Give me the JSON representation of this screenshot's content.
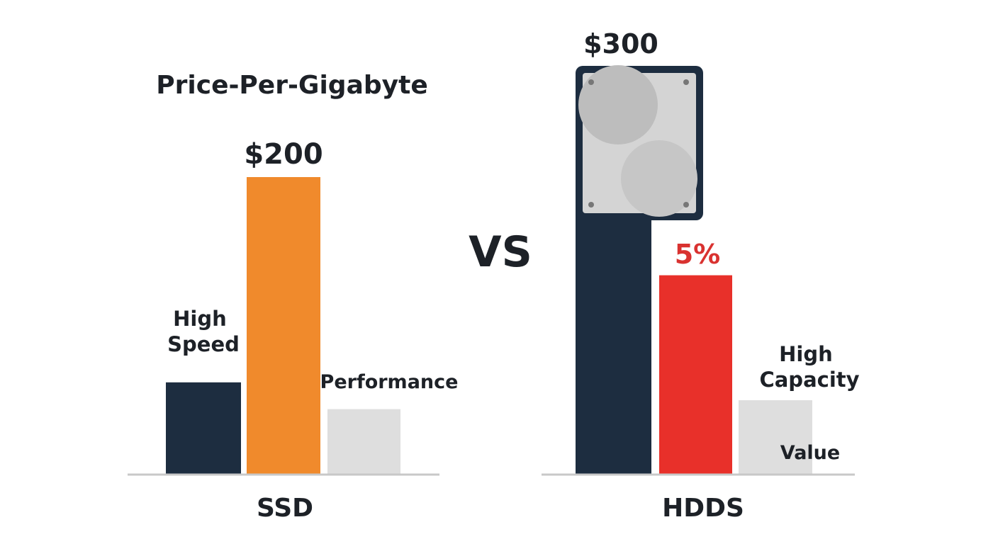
{
  "chart_data": [
    {
      "type": "bar",
      "title": "Price-Per-Gigabyte",
      "group_label": "SSD",
      "categories": [
        "High Speed",
        "",
        "Performance"
      ],
      "values": [
        31,
        100,
        22
      ],
      "value_labels": [
        "",
        "$200",
        ""
      ],
      "colors": [
        "#1d2d40",
        "#f08a2c",
        "#dedede"
      ],
      "ylim": [
        0,
        100
      ]
    },
    {
      "type": "bar",
      "title": "",
      "group_label": "HDDS",
      "categories": [
        "$300",
        "",
        "High Capacity"
      ],
      "values": [
        88,
        67,
        25
      ],
      "value_labels": [
        "",
        "5%",
        ""
      ],
      "inner_labels": [
        "",
        "",
        "Value"
      ],
      "colors": [
        "#1d2d40",
        "#e8302a",
        "#dedede"
      ],
      "ylim": [
        0,
        100
      ]
    }
  ],
  "vs_label": "VS",
  "icon": "hard-drive-icon",
  "colors": {
    "text": "#1d2127",
    "axis": "#c8c8c8",
    "navy": "#1d2d40",
    "orange": "#f08a2c",
    "red": "#e8302a",
    "highlight_red": "#d93230",
    "light": "#dedede"
  }
}
